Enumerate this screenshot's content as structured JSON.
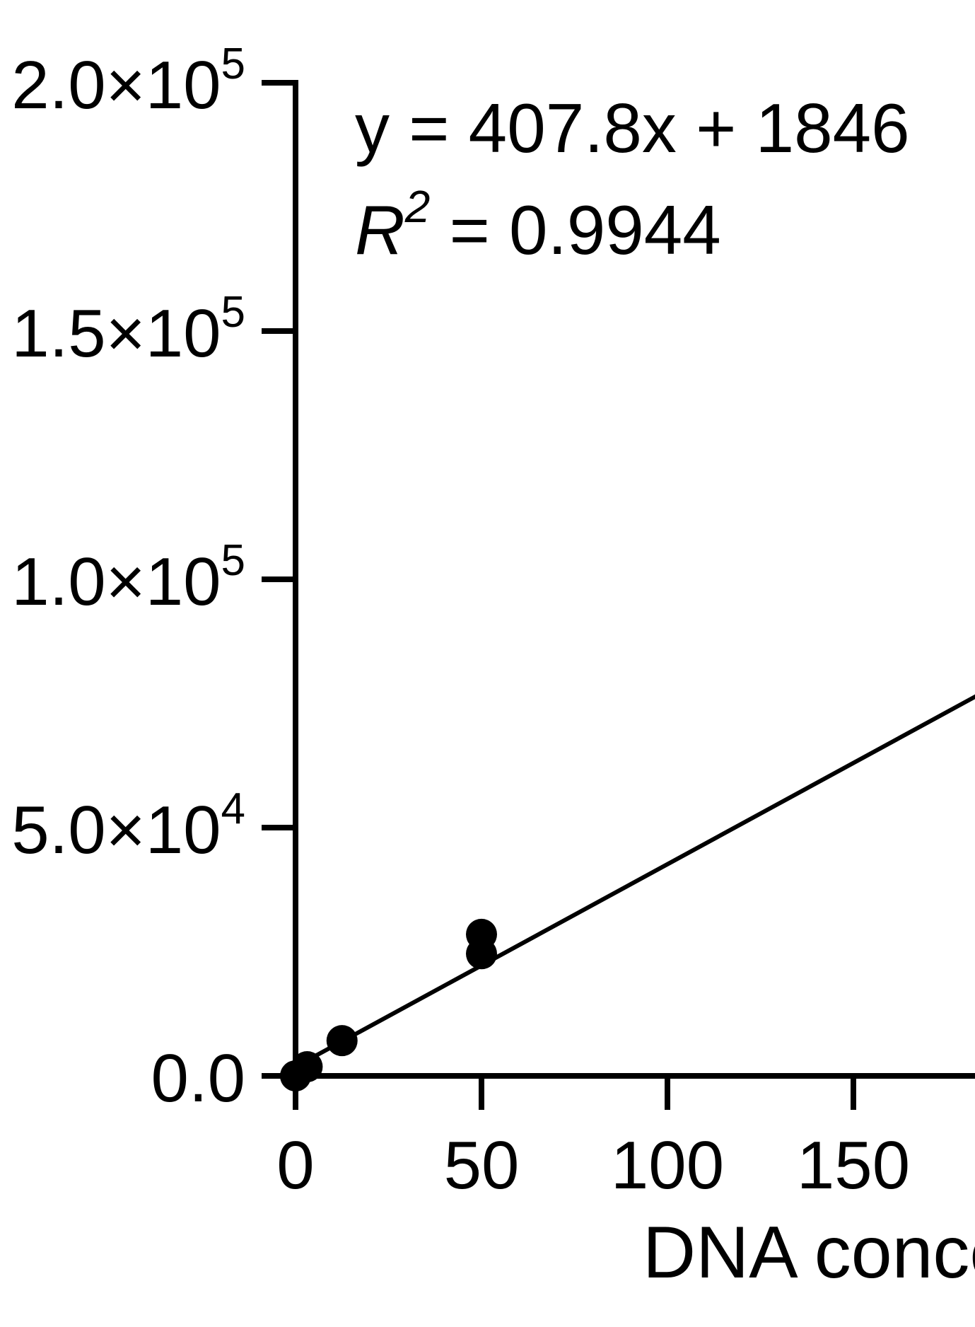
{
  "chart_data": {
    "type": "scatter",
    "title": "",
    "xlabel": "DNA conce",
    "ylabel": "",
    "xlim": [
      0,
      182.7
    ],
    "ylim": [
      0,
      200000
    ],
    "grid": false,
    "x_ticks": [
      0,
      50,
      100,
      150
    ],
    "x_tick_labels": [
      "0",
      "50",
      "100",
      "150"
    ],
    "y_ticks": [
      0,
      50000,
      100000,
      150000,
      200000
    ],
    "y_tick_labels": [
      {
        "mantissa": "0.0",
        "exp": ""
      },
      {
        "mantissa": "5.0×10",
        "exp": "4"
      },
      {
        "mantissa": "1.0×10",
        "exp": "5"
      },
      {
        "mantissa": "1.5×10",
        "exp": "5"
      },
      {
        "mantissa": "2.0×10",
        "exp": "5"
      }
    ],
    "points": [
      {
        "x": 0,
        "y": 0
      },
      {
        "x": 3.125,
        "y": 1850
      },
      {
        "x": 12.5,
        "y": 7100
      },
      {
        "x": 50,
        "y": 24600
      },
      {
        "x": 50,
        "y": 28500
      }
    ],
    "fit": {
      "slope": 407.8,
      "intercept": 1846
    },
    "annotations": {
      "equation": "y = 407.8x + 1846",
      "r2_label": "R",
      "r2_exp": "2",
      "r2_value": " = 0.9944"
    },
    "colors": {
      "marks": "#000000"
    }
  }
}
